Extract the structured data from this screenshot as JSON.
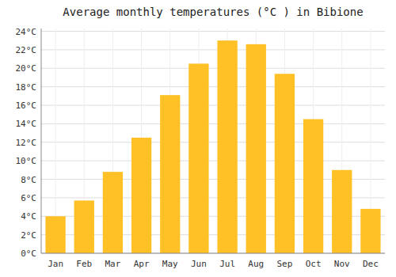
{
  "chart_data": {
    "type": "bar",
    "title": "Average monthly temperatures (°C ) in Bibione",
    "categories": [
      "Jan",
      "Feb",
      "Mar",
      "Apr",
      "May",
      "Jun",
      "Jul",
      "Aug",
      "Sep",
      "Oct",
      "Nov",
      "Dec"
    ],
    "values": [
      4.0,
      5.7,
      8.8,
      12.5,
      17.1,
      20.5,
      23.0,
      22.6,
      19.4,
      14.5,
      9.0,
      4.8
    ],
    "color": "#FFC125",
    "ylim": [
      0,
      24.3
    ],
    "yticks": [
      {
        "value": 0,
        "label": "0°C"
      },
      {
        "value": 2,
        "label": "2°C"
      },
      {
        "value": 4,
        "label": "4°C"
      },
      {
        "value": 6,
        "label": "6°C"
      },
      {
        "value": 8,
        "label": "8°C"
      },
      {
        "value": 10,
        "label": "10°C"
      },
      {
        "value": 12,
        "label": "12°C"
      },
      {
        "value": 14,
        "label": "14°C"
      },
      {
        "value": 16,
        "label": "16°C"
      },
      {
        "value": 18,
        "label": "18°C"
      },
      {
        "value": 20,
        "label": "20°C"
      },
      {
        "value": 22,
        "label": "22°C"
      },
      {
        "value": 24,
        "label": "24°C"
      }
    ],
    "grid": true
  }
}
